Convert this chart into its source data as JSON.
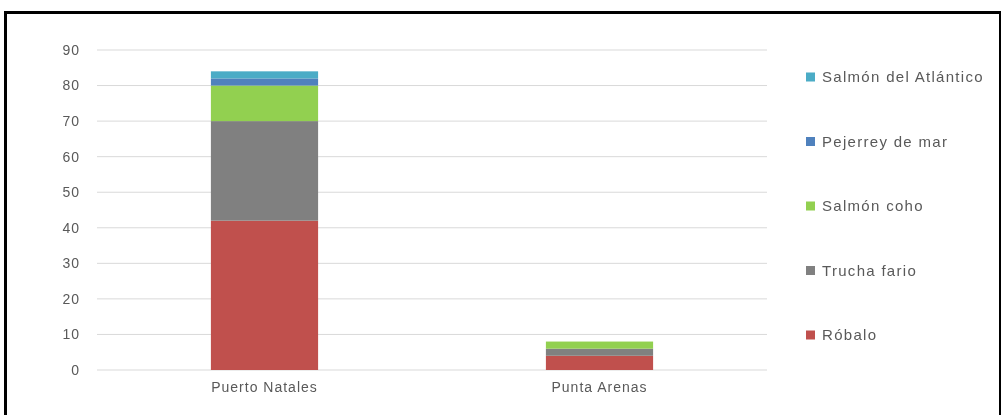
{
  "chart_data": {
    "type": "bar",
    "stacked": true,
    "categories": [
      "Puerto Natales",
      "Punta Arenas"
    ],
    "series": [
      {
        "name": "Róbalo",
        "color": "#c0504d",
        "values": [
          42,
          4
        ]
      },
      {
        "name": "Trucha fario",
        "color": "#808080",
        "values": [
          28,
          2
        ]
      },
      {
        "name": "Salmón coho",
        "color": "#92d050",
        "values": [
          10,
          2
        ]
      },
      {
        "name": "Pejerrey de mar",
        "color": "#4f81bd",
        "values": [
          2,
          0
        ]
      },
      {
        "name": "Salmón del Atlántico",
        "color": "#4bacc6",
        "values": [
          2,
          0
        ]
      }
    ],
    "ylim": [
      0,
      90
    ],
    "yticks": [
      0,
      10,
      20,
      30,
      40,
      50,
      60,
      70,
      80,
      90
    ],
    "grid": "y",
    "legend": "right"
  }
}
